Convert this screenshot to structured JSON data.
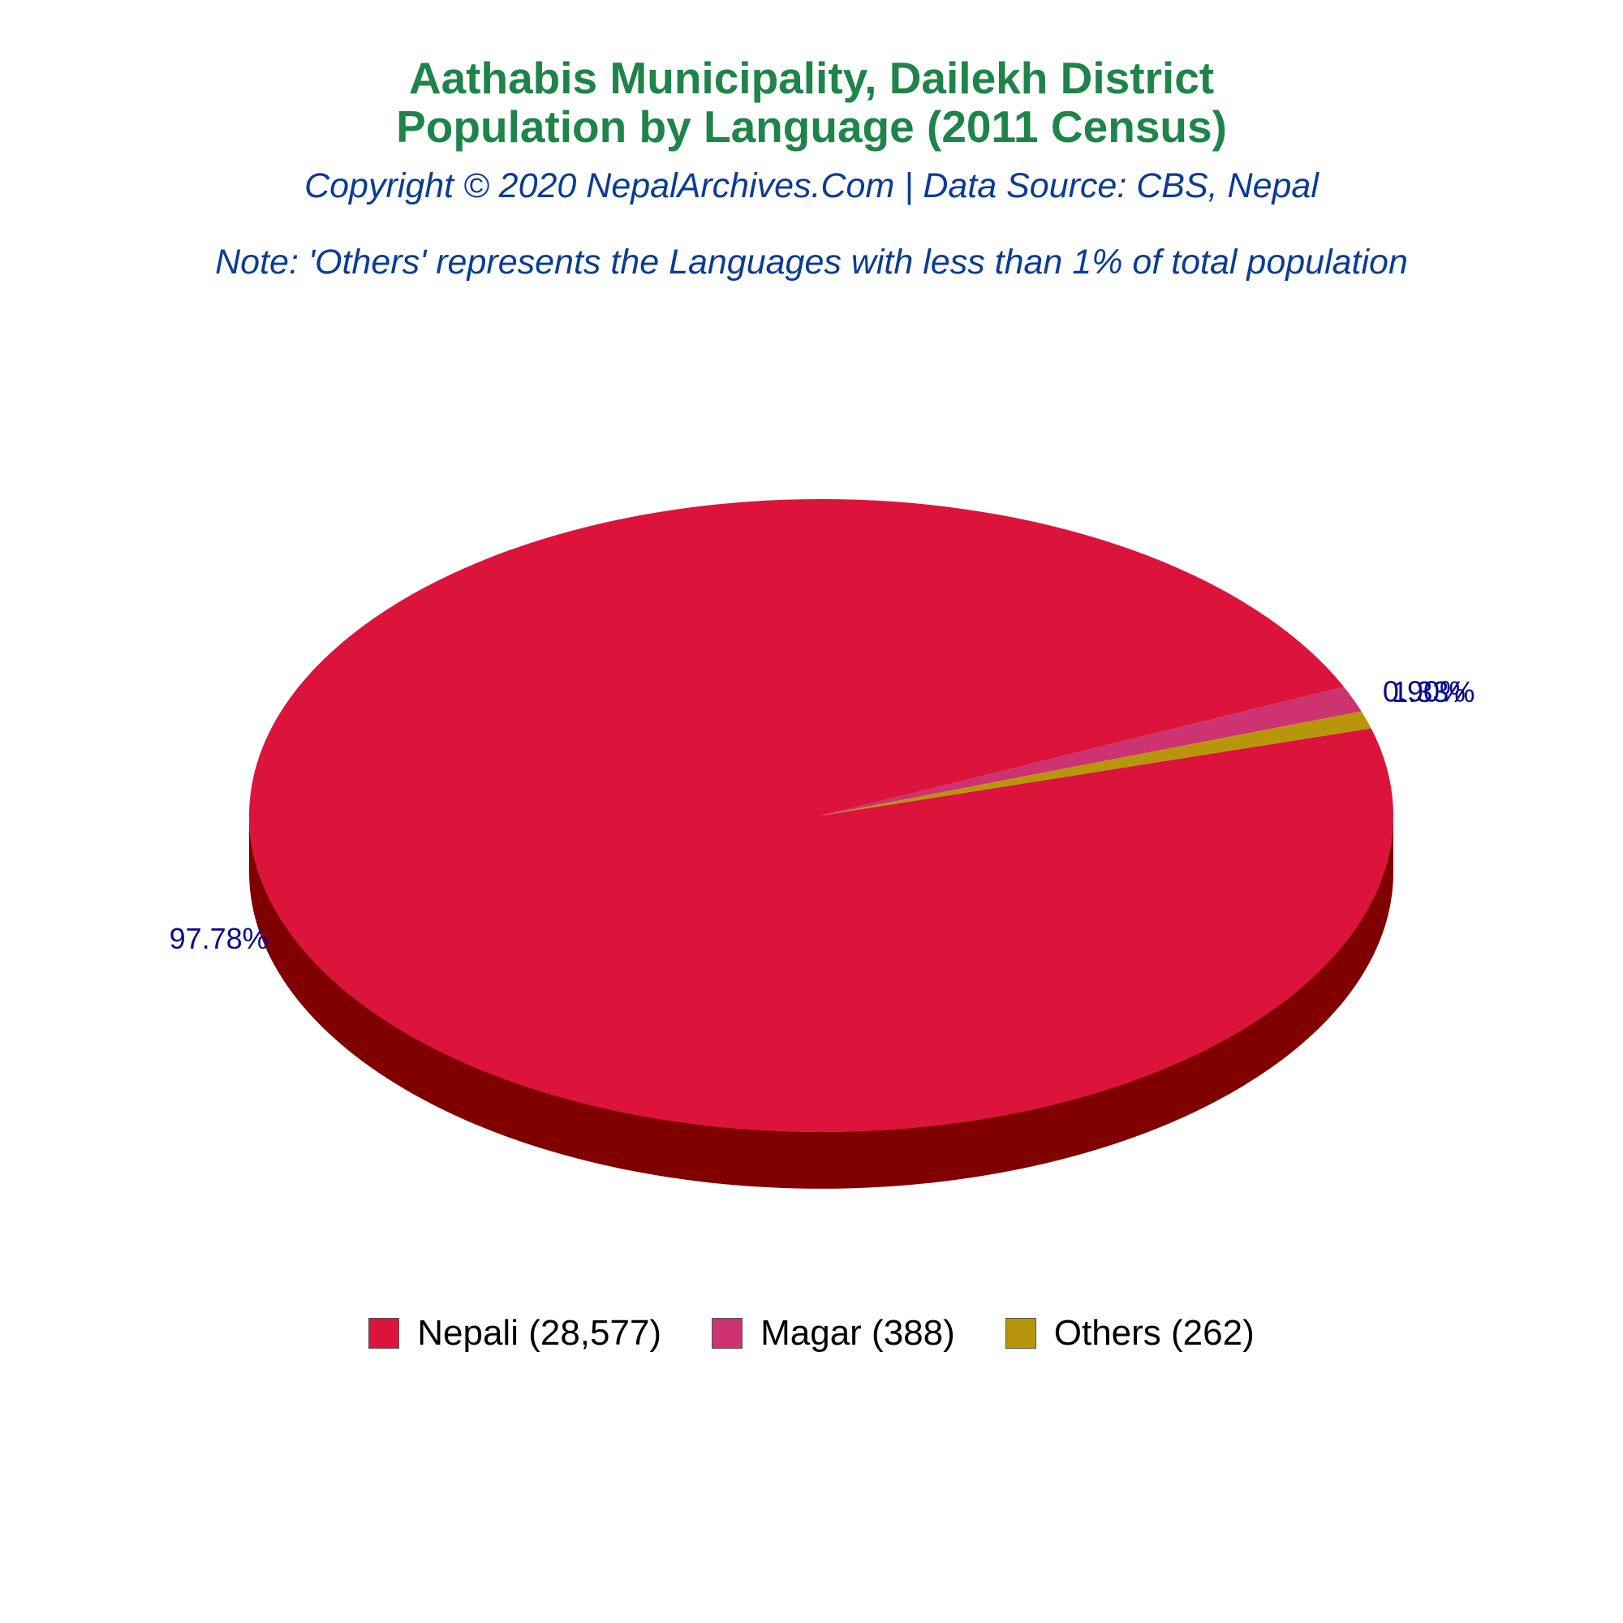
{
  "title_lines": [
    "Aathabis Municipality, Dailekh District",
    "Population by Language (2011 Census)"
  ],
  "copyright": "Copyright © 2020 NepalArchives.Com | Data Source: CBS, Nepal",
  "note": "Note: 'Others' represents the Languages with less than 1% of total population",
  "chart_data": {
    "type": "pie",
    "style": "3d",
    "legend_position": "bottom",
    "slices": [
      {
        "name": "Nepali",
        "value": 28577,
        "percent": 97.78,
        "percent_label": "97.78%",
        "legend_label": "Nepali (28,577)",
        "color": "#dc143c",
        "side_color": "#800000"
      },
      {
        "name": "Magar",
        "value": 388,
        "percent": 1.33,
        "percent_label": "1.33%",
        "legend_label": "Magar (388)",
        "color": "#cc3370",
        "side_color": "#7a1f43"
      },
      {
        "name": "Others",
        "value": 262,
        "percent": 0.9,
        "percent_label": "0.90%",
        "legend_label": "Others (262)",
        "color": "#b8960c",
        "side_color": "#6e5a07"
      }
    ]
  }
}
